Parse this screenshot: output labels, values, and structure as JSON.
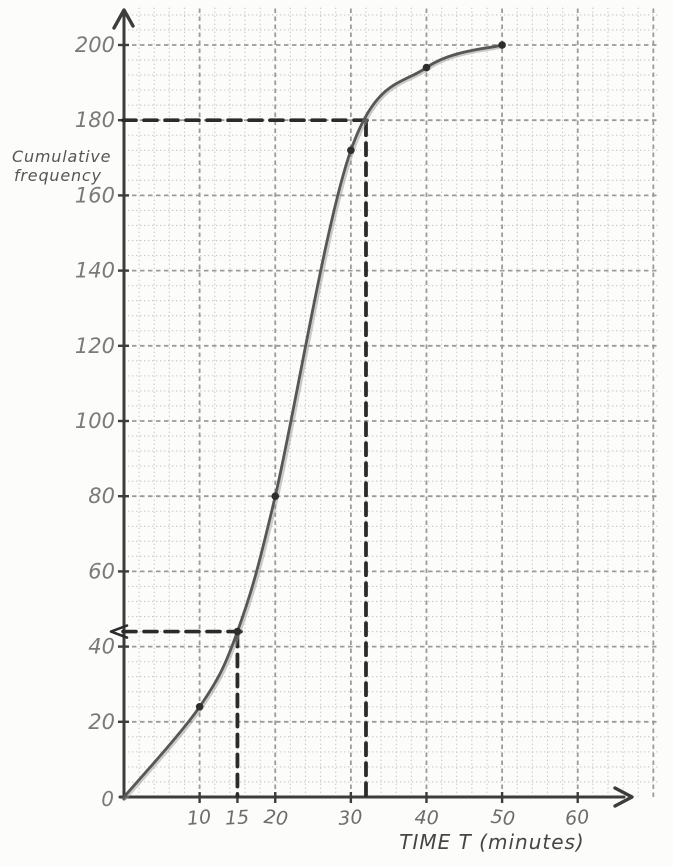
{
  "page": {
    "background": "#fcfcfb"
  },
  "chart_data": {
    "type": "line",
    "subtype": "cumulative-frequency-ogive",
    "title": "",
    "xlabel": "TIME T (minutes)",
    "ylabel": "Cumulative frequency",
    "ylabel_lines": [
      "Cumulative",
      "frequency"
    ],
    "origin_label": "0",
    "x_ticks": [
      10,
      15,
      20,
      30,
      40,
      50,
      60
    ],
    "y_ticks": [
      20,
      40,
      60,
      80,
      100,
      120,
      140,
      160,
      180,
      200
    ],
    "xlim": [
      0,
      68
    ],
    "ylim": [
      0,
      210
    ],
    "grid": {
      "style": "graph paper: minor dotted, major dashed",
      "minor_step_x": 2,
      "minor_step_y": 4,
      "major_step_x": 10,
      "major_step_y": 20
    },
    "series": [
      {
        "name": "cumulative frequency curve",
        "points": [
          [
            0,
            0
          ],
          [
            10,
            24
          ],
          [
            15,
            44
          ],
          [
            20,
            80
          ],
          [
            30,
            172
          ],
          [
            40,
            194
          ],
          [
            50,
            200
          ]
        ]
      }
    ],
    "marked_points": [
      [
        10,
        24
      ],
      [
        15,
        44
      ],
      [
        20,
        80
      ],
      [
        30,
        172
      ],
      [
        40,
        194
      ],
      [
        50,
        200
      ]
    ],
    "guides": [
      {
        "x": 32,
        "y": 180,
        "reading": "CF = 180 at T = 32",
        "left_arrowhead": false
      },
      {
        "x": 15,
        "y": 44,
        "reading": "T = 15 gives CF = 44",
        "left_arrowhead": true
      }
    ],
    "legend": null,
    "colors": {
      "curve": "#575757",
      "curve_halo": "#979797",
      "points": "#2e2e2e",
      "guide_dash": "#2b2b2b",
      "axis": "#3d3d3d",
      "grid_major": "#9b9b9b",
      "grid_minor": "#c9c9c9",
      "tick_text": "#7a7a7a",
      "title_text": "#4a4a4a"
    }
  }
}
